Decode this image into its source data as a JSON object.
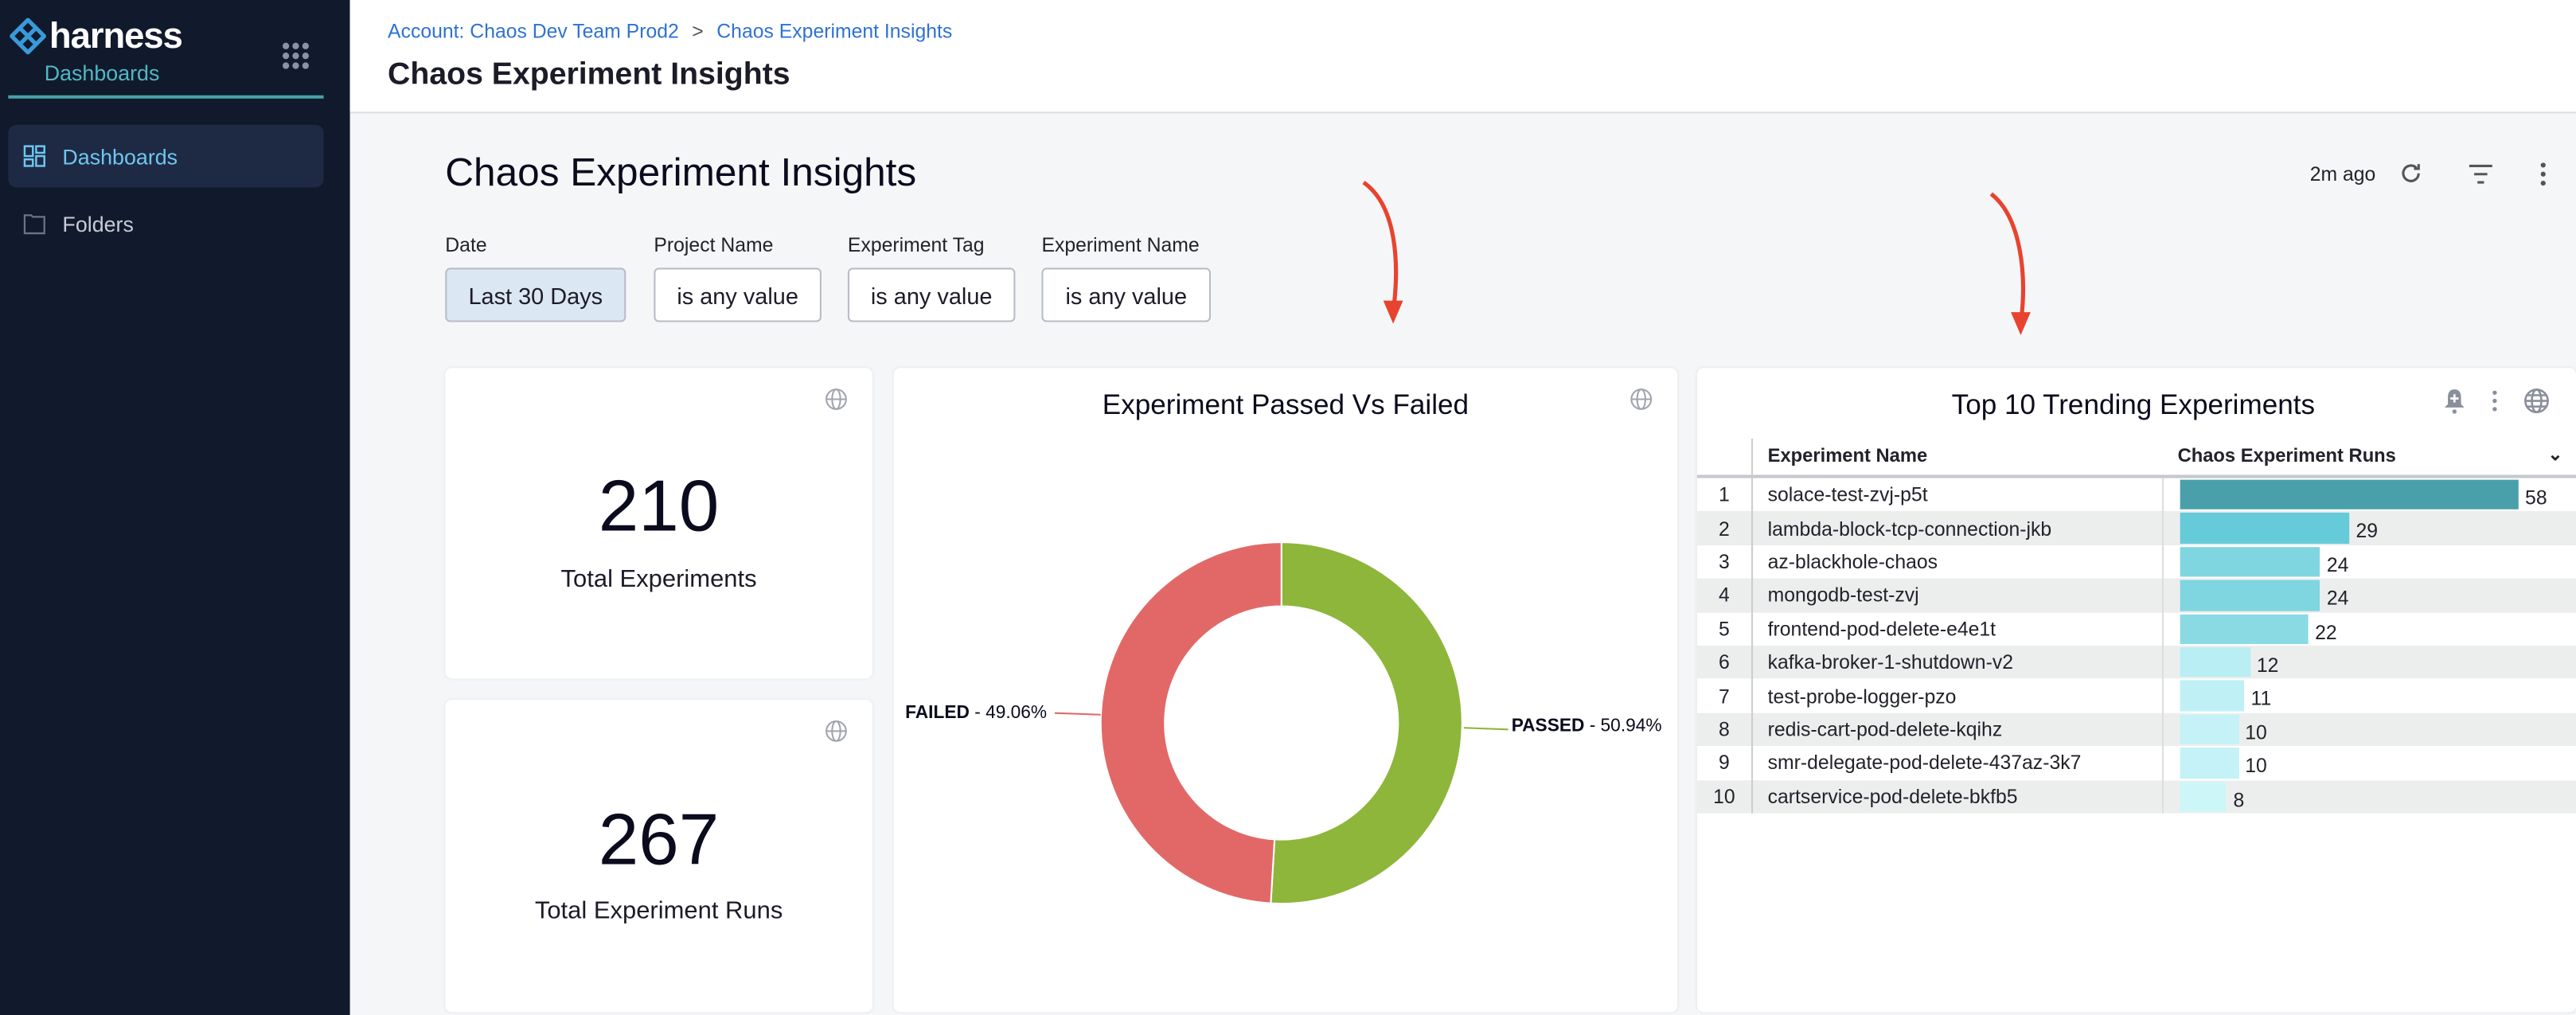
{
  "sidebar": {
    "logo_text": "harness",
    "module": "Dashboards",
    "items": [
      {
        "label": "Dashboards",
        "icon": "dashboard-grid-icon",
        "active": true
      },
      {
        "label": "Folders",
        "icon": "folder-icon",
        "active": false
      }
    ]
  },
  "header": {
    "breadcrumb": [
      "Account: Chaos Dev Team Prod2",
      "Chaos Experiment Insights"
    ],
    "breadcrumb_separator": ">",
    "title": "Chaos Experiment Insights"
  },
  "dashboard": {
    "title": "Chaos Experiment Insights",
    "updated": "2m ago",
    "filters": [
      {
        "label": "Date",
        "value": "Last 30 Days"
      },
      {
        "label": "Project Name",
        "value": "is any value"
      },
      {
        "label": "Experiment Tag",
        "value": "is any value"
      },
      {
        "label": "Experiment Name",
        "value": "is any value"
      }
    ]
  },
  "tiles": {
    "total_experiments": {
      "value": "210",
      "label": "Total Experiments"
    },
    "total_runs": {
      "value": "267",
      "label": "Total Experiment Runs"
    }
  },
  "colors": {
    "passed": "#8db63a",
    "failed": "#e26868",
    "annotation_arrow": "#e8432e",
    "accent": "#4aa0aa"
  },
  "chart_data": [
    {
      "type": "pie",
      "title": "Experiment Passed Vs Failed",
      "donut": true,
      "slices": [
        {
          "name": "PASSED",
          "value": 50.94,
          "label": "- 50.94%",
          "color": "#8db63a"
        },
        {
          "name": "FAILED",
          "value": 49.06,
          "label": "- 49.06%",
          "color": "#e26868"
        }
      ]
    },
    {
      "type": "table",
      "title": "Top 10 Trending Experiments",
      "columns": [
        "Experiment Name",
        "Chaos Experiment Runs"
      ],
      "rows": [
        {
          "rank": "1",
          "name": "solace-test-zvj-p5t",
          "runs": 58,
          "color": "#4aa0aa"
        },
        {
          "rank": "2",
          "name": "lambda-block-tcp-connection-jkb",
          "runs": 29,
          "color": "#66cbd8"
        },
        {
          "rank": "3",
          "name": "az-blackhole-chaos",
          "runs": 24,
          "color": "#7fd6e0"
        },
        {
          "rank": "4",
          "name": "mongodb-test-zvj",
          "runs": 24,
          "color": "#7fd6e0"
        },
        {
          "rank": "5",
          "name": "frontend-pod-delete-e4e1t",
          "runs": 22,
          "color": "#8adae4"
        },
        {
          "rank": "6",
          "name": "kafka-broker-1-shutdown-v2",
          "runs": 12,
          "color": "#b8eef4"
        },
        {
          "rank": "7",
          "name": "test-probe-logger-pzo",
          "runs": 11,
          "color": "#bff0f5"
        },
        {
          "rank": "8",
          "name": "redis-cart-pod-delete-kqihz",
          "runs": 10,
          "color": "#c4f2f7"
        },
        {
          "rank": "9",
          "name": "smr-delegate-pod-delete-437az-3k7",
          "runs": 10,
          "color": "#c4f2f7"
        },
        {
          "rank": "10",
          "name": "cartservice-pod-delete-bkfb5",
          "runs": 8,
          "color": "#cdf6f9"
        }
      ]
    }
  ]
}
